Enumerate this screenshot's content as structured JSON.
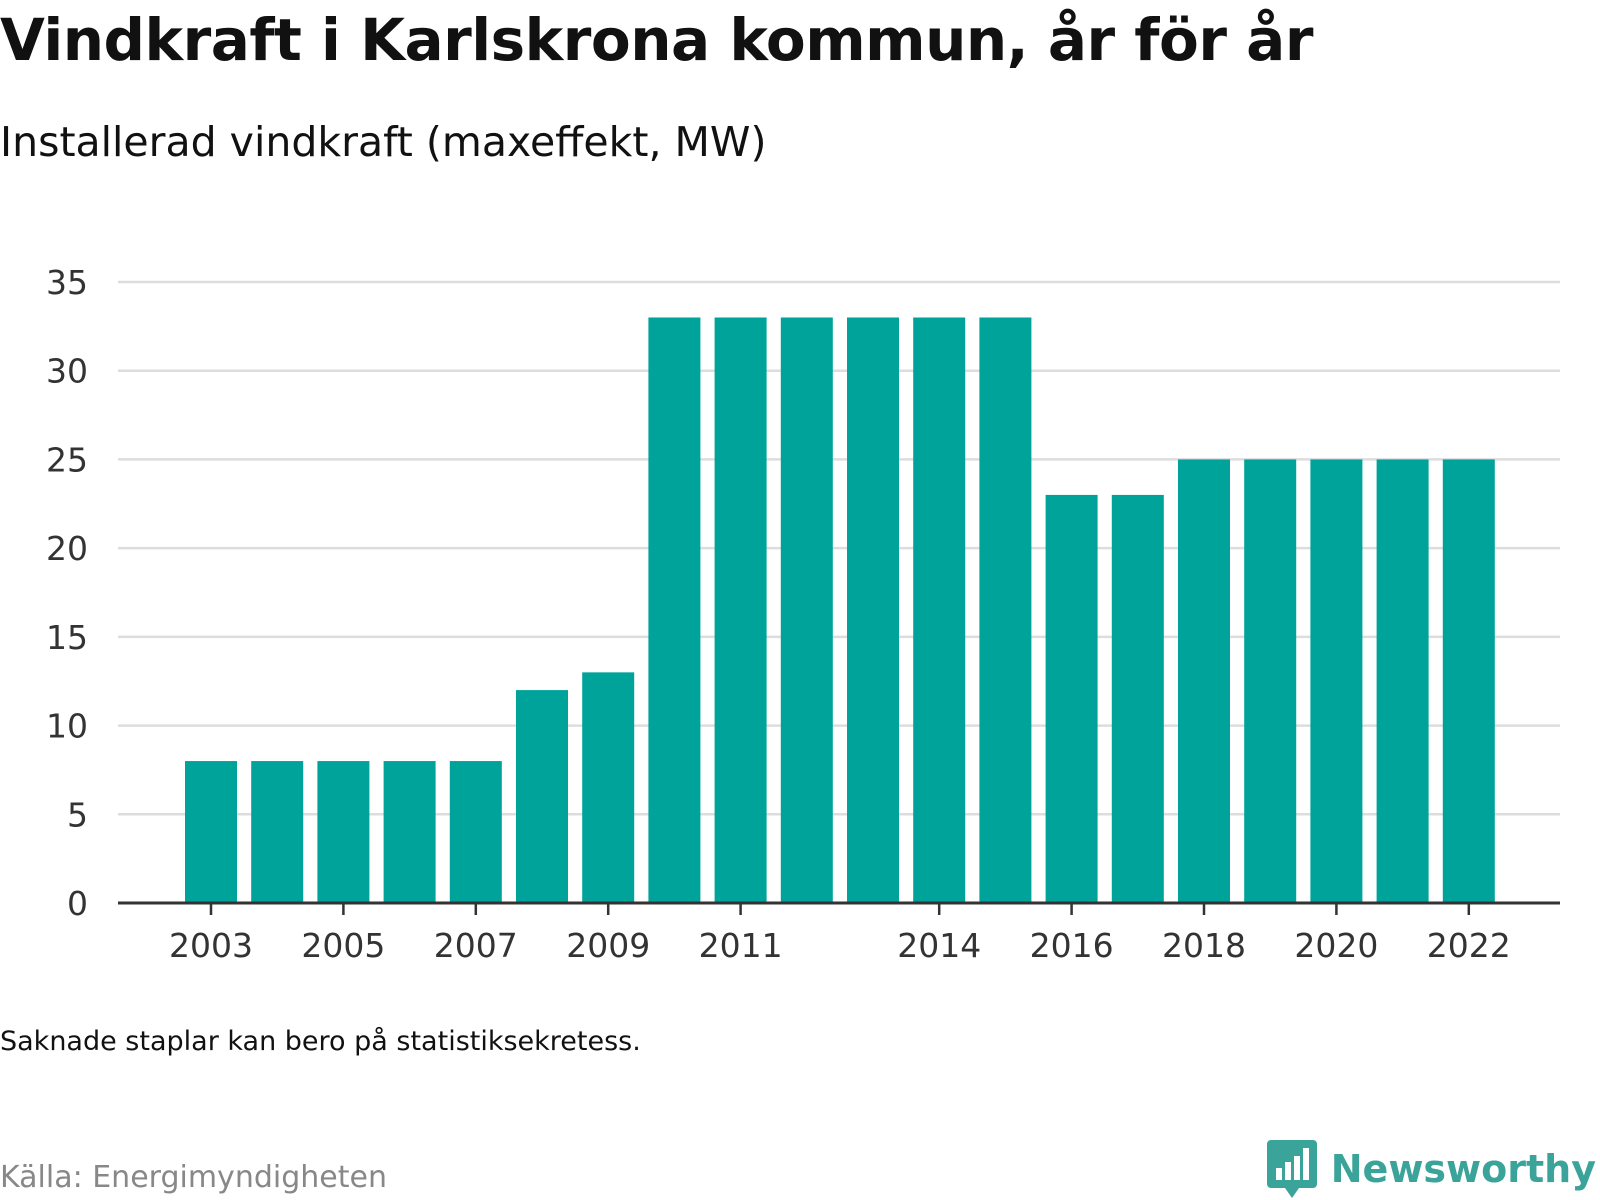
{
  "header": {
    "title": "Vindkraft i Karlskrona kommun, år för år",
    "subtitle": "Installerad vindkraft (maxeffekt, MW)"
  },
  "footer": {
    "note": "Saknade staplar kan bero på statistiksekretess.",
    "source": "Källa: Energimyndigheten",
    "brand": "Newsworthy",
    "brand_icon": "bar-chart-speech-bubble-icon",
    "brand_color": "#3aa39a"
  },
  "chart_data": {
    "type": "bar",
    "bar_color": "#00a39a",
    "grid_color": "#dddddd",
    "grid": true,
    "categories": [
      "2003",
      "2004",
      "2005",
      "2006",
      "2007",
      "2008",
      "2009",
      "2010",
      "2011",
      "2012",
      "2013",
      "2014",
      "2015",
      "2016",
      "2017",
      "2018",
      "2019",
      "2020",
      "2021",
      "2022"
    ],
    "values": [
      8,
      8,
      8,
      8,
      8,
      12,
      13,
      33,
      33,
      33,
      33,
      33,
      33,
      23,
      23,
      25,
      25,
      25,
      25,
      25
    ],
    "x_tick_labels": [
      "2003",
      "2005",
      "2007",
      "2009",
      "2011",
      "2014",
      "2016",
      "2018",
      "2020",
      "2022"
    ],
    "y_ticks": [
      0,
      5,
      10,
      15,
      20,
      25,
      30,
      35
    ],
    "ylim": [
      0,
      35
    ],
    "xlabel": "",
    "ylabel": ""
  }
}
